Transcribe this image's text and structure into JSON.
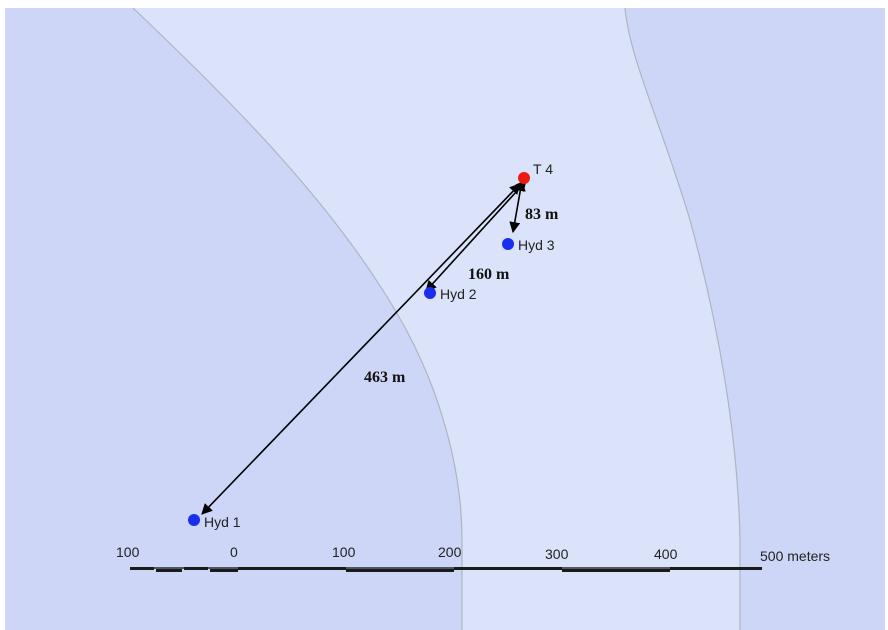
{
  "colors": {
    "background": "#ffffff",
    "outer_zone": "#cdd6f7",
    "corridor_zone": "#dbe3fb",
    "zone_border": "#b0b4bf",
    "hydrant": "#1a2ef0",
    "target": "#ee1a10",
    "arrow": "#000000"
  },
  "points": {
    "target": {
      "label": "T 4"
    },
    "hyd1": {
      "label": "Hyd 1"
    },
    "hyd2": {
      "label": "Hyd 2"
    },
    "hyd3": {
      "label": "Hyd 3"
    }
  },
  "distances": {
    "to_hyd3": "83 m",
    "to_hyd2": "160 m",
    "to_hyd1": "463 m"
  },
  "scale_bar": {
    "labels": [
      "100",
      "0",
      "100",
      "200",
      "300",
      "400",
      "500 meters"
    ]
  }
}
